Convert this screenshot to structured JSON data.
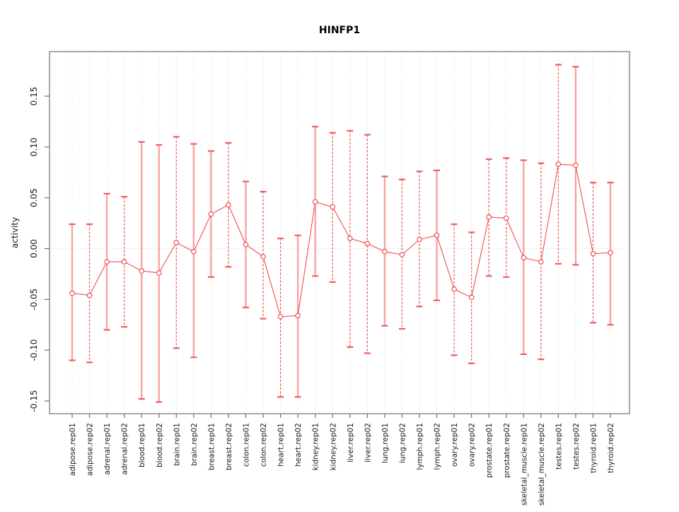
{
  "window": {
    "background": "#ffffff"
  },
  "chart_data": {
    "type": "line",
    "subtype": "points-with-error-bars",
    "title": "HINFP1",
    "xlabel": "",
    "ylabel": "activity",
    "legend": "none",
    "grid": "vertical dotted gridline at each category; horizontal dotted line at y=0",
    "ylim": [
      -0.165,
      0.19
    ],
    "ytick_labels": [
      "0.15",
      "0.10",
      "0.05",
      "0.00",
      "-0.05",
      "-0.10",
      "-0.15"
    ],
    "ytick_values": [
      0.15,
      0.1,
      0.05,
      0.0,
      -0.05,
      -0.1,
      -0.15
    ],
    "categories": [
      "adipose.rep01",
      "adipose.rep02",
      "adrenal.rep01",
      "adrenal.rep02",
      "blood.rep01",
      "blood.rep02",
      "brain.rep01",
      "brain.rep02",
      "breast.rep01",
      "breast.rep02",
      "colon.rep01",
      "colon.rep02",
      "heart.rep01",
      "heart.rep02",
      "kidney.rep01",
      "kidney.rep02",
      "liver.rep01",
      "liver.rep02",
      "lung.rep01",
      "lung.rep02",
      "lymph.rep01",
      "lymph.rep02",
      "ovary.rep01",
      "ovary.rep02",
      "prostate.rep01",
      "prostate.rep02",
      "skeletal_muscle.rep01",
      "skeletal_muscle.rep02",
      "testes.rep01",
      "testes.rep02",
      "thyroid.rep01",
      "thyroid.rep02"
    ],
    "series": [
      {
        "name": "activity",
        "values": [
          -0.044,
          -0.046,
          -0.013,
          -0.013,
          -0.022,
          -0.024,
          0.006,
          -0.003,
          0.034,
          0.043,
          0.004,
          -0.008,
          -0.067,
          -0.066,
          0.046,
          0.041,
          0.01,
          0.005,
          -0.003,
          -0.006,
          0.009,
          0.013,
          -0.04,
          -0.048,
          0.031,
          0.03,
          -0.009,
          -0.013,
          0.083,
          0.082,
          -0.005,
          -0.004
        ],
        "error_low": [
          -0.11,
          -0.112,
          -0.08,
          -0.077,
          -0.148,
          -0.151,
          -0.098,
          -0.107,
          -0.028,
          -0.018,
          -0.058,
          -0.069,
          -0.146,
          -0.146,
          -0.027,
          -0.033,
          -0.097,
          -0.103,
          -0.076,
          -0.079,
          -0.057,
          -0.051,
          -0.105,
          -0.113,
          -0.027,
          -0.028,
          -0.104,
          -0.109,
          -0.015,
          -0.016,
          -0.073,
          -0.075
        ],
        "error_high": [
          0.024,
          0.024,
          0.054,
          0.051,
          0.105,
          0.102,
          0.11,
          0.103,
          0.096,
          0.104,
          0.066,
          0.056,
          0.01,
          0.013,
          0.12,
          0.114,
          0.116,
          0.112,
          0.071,
          0.068,
          0.076,
          0.077,
          0.024,
          0.016,
          0.088,
          0.089,
          0.087,
          0.084,
          0.181,
          0.179,
          0.065,
          0.065
        ],
        "bar_style": [
          "solid",
          "dashed",
          "solid",
          "dashed",
          "solid",
          "solid",
          "dashed",
          "solid",
          "solid",
          "dashed",
          "solid",
          "dashed",
          "dashed",
          "solid",
          "solid",
          "dashed",
          "dashed",
          "dashed",
          "solid",
          "dashed",
          "dashed",
          "solid",
          "dashed",
          "dashed",
          "dashed",
          "dashed",
          "solid",
          "dashed",
          "dashed",
          "solid",
          "dashed",
          "solid"
        ]
      }
    ],
    "colors": {
      "point": "#ef4e4e",
      "connect_line": "#ef4e4e",
      "bar_solid": "#f7a3a3",
      "bar_dashed": "#ee5252",
      "cap": "#f05d5d",
      "grid": "#d9d9d9",
      "zero_line": "#cfcfcf",
      "axis": "#6e6e6e",
      "tick_text": "#1a1a1a",
      "title_text": "#000000"
    }
  }
}
